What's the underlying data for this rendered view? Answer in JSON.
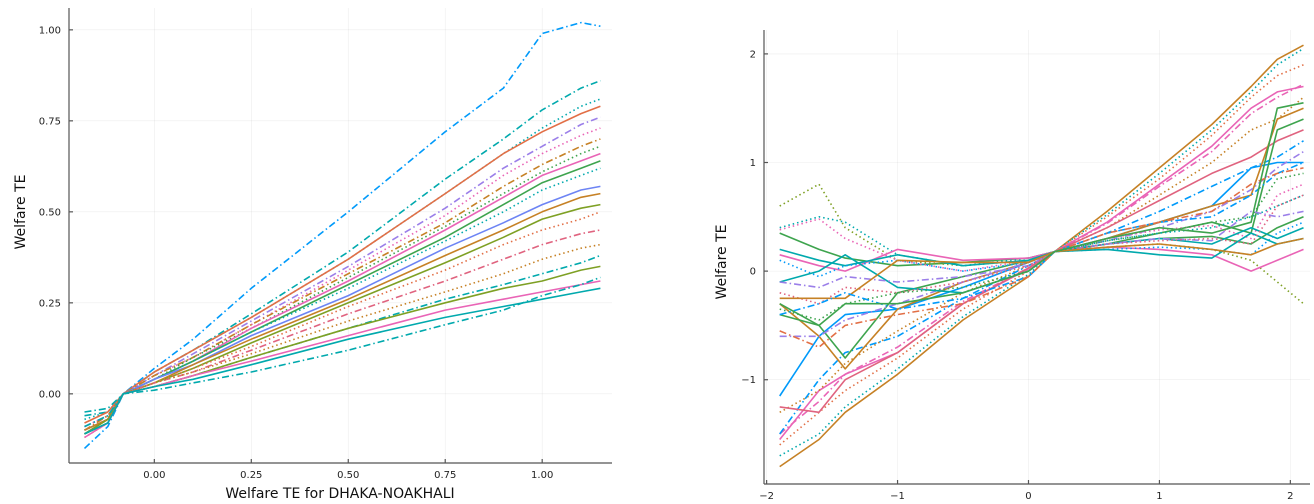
{
  "chart_data": [
    {
      "type": "line",
      "title": "",
      "xlabel": "Welfare TE for DHAKA-NOAKHALI",
      "ylabel": "Welfare TE",
      "xlim": [
        -0.22,
        1.18
      ],
      "ylim": [
        -0.19,
        1.06
      ],
      "xticks": [
        0.0,
        0.25,
        0.5,
        0.75,
        1.0
      ],
      "xtick_labels": [
        "0.00",
        "0.25",
        "0.50",
        "0.75",
        "1.00"
      ],
      "yticks": [
        0.0,
        0.25,
        0.5,
        0.75,
        1.0
      ],
      "ytick_labels": [
        "0.00",
        "0.25",
        "0.50",
        "0.75",
        "1.00"
      ],
      "grid": true,
      "legend": "none",
      "x": [
        -0.18,
        -0.12,
        -0.08,
        0.0,
        0.1,
        0.25,
        0.5,
        0.75,
        0.9,
        1.0,
        1.1,
        1.15
      ],
      "series": [
        {
          "name": "s1",
          "color": "#009AFA",
          "dash": "dashdot",
          "values": [
            -0.15,
            -0.09,
            0.0,
            0.07,
            0.15,
            0.29,
            0.5,
            0.72,
            0.84,
            0.99,
            1.02,
            1.01
          ]
        },
        {
          "name": "s2",
          "color": "#00A9AD",
          "dash": "dashdot",
          "values": [
            -0.06,
            -0.05,
            0.0,
            0.06,
            0.12,
            0.22,
            0.39,
            0.59,
            0.7,
            0.78,
            0.84,
            0.86
          ]
        },
        {
          "name": "s3",
          "color": "#00A9AD",
          "dash": "dot",
          "values": [
            -0.07,
            -0.05,
            0.0,
            0.06,
            0.12,
            0.21,
            0.37,
            0.55,
            0.66,
            0.73,
            0.79,
            0.81
          ]
        },
        {
          "name": "s4",
          "color": "#E26F46",
          "dash": "solid",
          "values": [
            -0.08,
            -0.05,
            0.0,
            0.06,
            0.12,
            0.21,
            0.37,
            0.55,
            0.66,
            0.72,
            0.77,
            0.79
          ]
        },
        {
          "name": "s5",
          "color": "#9B7FE9",
          "dash": "dashdot",
          "values": [
            -0.09,
            -0.06,
            0.0,
            0.05,
            0.11,
            0.2,
            0.35,
            0.51,
            0.62,
            0.68,
            0.74,
            0.76
          ]
        },
        {
          "name": "s6",
          "color": "#E964B6",
          "dash": "dot",
          "values": [
            -0.09,
            -0.06,
            0.0,
            0.05,
            0.1,
            0.19,
            0.34,
            0.49,
            0.6,
            0.66,
            0.71,
            0.73
          ]
        },
        {
          "name": "s7",
          "color": "#C68125",
          "dash": "dashdot",
          "values": [
            -0.1,
            -0.06,
            0.0,
            0.05,
            0.1,
            0.19,
            0.33,
            0.47,
            0.57,
            0.63,
            0.68,
            0.7
          ]
        },
        {
          "name": "s8",
          "color": "#3EA44E",
          "dash": "dot",
          "values": [
            -0.1,
            -0.07,
            0.0,
            0.04,
            0.1,
            0.18,
            0.32,
            0.46,
            0.55,
            0.61,
            0.66,
            0.68
          ]
        },
        {
          "name": "s9",
          "color": "#E964B6",
          "dash": "solid",
          "values": [
            -0.1,
            -0.07,
            0.0,
            0.04,
            0.09,
            0.18,
            0.31,
            0.45,
            0.54,
            0.6,
            0.64,
            0.66
          ]
        },
        {
          "name": "s10",
          "color": "#3EA44E",
          "dash": "solid",
          "values": [
            -0.11,
            -0.07,
            0.0,
            0.04,
            0.09,
            0.17,
            0.3,
            0.43,
            0.52,
            0.58,
            0.62,
            0.64
          ]
        },
        {
          "name": "s11",
          "color": "#00A9AD",
          "dash": "dot",
          "values": [
            -0.11,
            -0.07,
            0.0,
            0.04,
            0.09,
            0.17,
            0.29,
            0.42,
            0.5,
            0.56,
            0.6,
            0.62
          ]
        },
        {
          "name": "s12",
          "color": "#6D84F4",
          "dash": "solid",
          "values": [
            -0.1,
            -0.07,
            0.0,
            0.04,
            0.08,
            0.16,
            0.27,
            0.4,
            0.47,
            0.52,
            0.56,
            0.57
          ]
        },
        {
          "name": "s13",
          "color": "#C68125",
          "dash": "solid",
          "values": [
            -0.1,
            -0.07,
            0.0,
            0.03,
            0.08,
            0.15,
            0.26,
            0.38,
            0.45,
            0.5,
            0.54,
            0.55
          ]
        },
        {
          "name": "s14",
          "color": "#7EA024",
          "dash": "solid",
          "values": [
            -0.11,
            -0.07,
            0.0,
            0.03,
            0.07,
            0.14,
            0.25,
            0.36,
            0.43,
            0.48,
            0.51,
            0.52
          ]
        },
        {
          "name": "s15",
          "color": "#E26F46",
          "dash": "dot",
          "values": [
            -0.12,
            -0.08,
            0.0,
            0.03,
            0.07,
            0.13,
            0.24,
            0.34,
            0.41,
            0.45,
            0.48,
            0.5
          ]
        },
        {
          "name": "s16",
          "color": "#E0637F",
          "dash": "dashdot",
          "values": [
            -0.11,
            -0.08,
            0.0,
            0.03,
            0.06,
            0.12,
            0.22,
            0.31,
            0.37,
            0.41,
            0.44,
            0.45
          ]
        },
        {
          "name": "s17",
          "color": "#C68125",
          "dash": "dot",
          "values": [
            -0.1,
            -0.07,
            0.0,
            0.03,
            0.06,
            0.11,
            0.2,
            0.28,
            0.33,
            0.37,
            0.4,
            0.41
          ]
        },
        {
          "name": "s18",
          "color": "#00A9AD",
          "dash": "dashdot",
          "values": [
            -0.09,
            -0.06,
            0.0,
            0.02,
            0.05,
            0.1,
            0.18,
            0.26,
            0.3,
            0.33,
            0.36,
            0.38
          ]
        },
        {
          "name": "s19",
          "color": "#7EA024",
          "dash": "solid",
          "values": [
            -0.11,
            -0.08,
            0.0,
            0.02,
            0.05,
            0.1,
            0.18,
            0.25,
            0.29,
            0.31,
            0.34,
            0.35
          ]
        },
        {
          "name": "s20",
          "color": "#E964B6",
          "dash": "solid",
          "values": [
            -0.12,
            -0.08,
            0.0,
            0.02,
            0.05,
            0.09,
            0.16,
            0.23,
            0.26,
            0.28,
            0.3,
            0.31
          ]
        },
        {
          "name": "s21",
          "color": "#00A9AD",
          "dash": "solid",
          "values": [
            -0.11,
            -0.08,
            0.0,
            0.02,
            0.04,
            0.08,
            0.15,
            0.21,
            0.24,
            0.26,
            0.28,
            0.29
          ]
        },
        {
          "name": "s22",
          "color": "#00A9AD",
          "dash": "dashdot",
          "values": [
            -0.05,
            -0.04,
            0.0,
            0.01,
            0.03,
            0.06,
            0.12,
            0.19,
            0.23,
            0.27,
            0.3,
            0.32
          ]
        }
      ]
    },
    {
      "type": "line",
      "title": "",
      "xlabel": "",
      "ylabel": "Welfare TE",
      "xlim": [
        -2.02,
        2.15
      ],
      "ylim": [
        -1.96,
        2.22
      ],
      "xticks": [
        -2,
        -1,
        0,
        1,
        2
      ],
      "xtick_labels": [
        "−2",
        "−1",
        "0",
        "1",
        "2"
      ],
      "yticks": [
        -1,
        0,
        1,
        2
      ],
      "ytick_labels": [
        "−1",
        "0",
        "1",
        "2"
      ],
      "grid": true,
      "legend": "none",
      "x": [
        -1.9,
        -1.6,
        -1.4,
        -1.0,
        -0.5,
        0.0,
        0.2,
        0.6,
        1.0,
        1.4,
        1.7,
        1.9,
        2.1
      ],
      "series": [
        {
          "name": "r1",
          "color": "#C68125",
          "dash": "solid",
          "values": [
            -1.8,
            -1.55,
            -1.3,
            -0.95,
            -0.45,
            -0.05,
            0.18,
            0.55,
            0.95,
            1.35,
            1.7,
            1.95,
            2.08
          ]
        },
        {
          "name": "r2",
          "color": "#00A9AD",
          "dash": "dot",
          "values": [
            -1.7,
            -1.5,
            -1.25,
            -0.9,
            -0.42,
            -0.03,
            0.18,
            0.52,
            0.9,
            1.3,
            1.65,
            1.9,
            2.05
          ]
        },
        {
          "name": "r3",
          "color": "#E26F46",
          "dash": "dot",
          "values": [
            -1.6,
            -1.3,
            -1.1,
            -0.8,
            -0.35,
            0.0,
            0.18,
            0.5,
            0.85,
            1.25,
            1.6,
            1.8,
            1.9
          ]
        },
        {
          "name": "r4",
          "color": "#E964B6",
          "dash": "solid",
          "values": [
            -1.55,
            -1.1,
            -0.95,
            -0.75,
            -0.3,
            0.02,
            0.18,
            0.45,
            0.8,
            1.15,
            1.5,
            1.65,
            1.7
          ]
        },
        {
          "name": "r5",
          "color": "#E964B6",
          "dash": "dashdot",
          "values": [
            -1.5,
            -1.2,
            -0.95,
            -0.7,
            -0.28,
            0.03,
            0.18,
            0.44,
            0.78,
            1.1,
            1.45,
            1.6,
            1.72
          ]
        },
        {
          "name": "r6",
          "color": "#C68125",
          "dash": "dot",
          "values": [
            -1.3,
            -1.1,
            -0.85,
            -0.55,
            -0.2,
            0.05,
            0.18,
            0.4,
            0.7,
            1.0,
            1.3,
            1.4,
            1.6
          ]
        },
        {
          "name": "r7",
          "color": "#009AFA",
          "dash": "dashdot",
          "values": [
            -1.5,
            -1.0,
            -0.75,
            -0.6,
            -0.25,
            0.05,
            0.18,
            0.35,
            0.55,
            0.78,
            0.95,
            1.05,
            1.2
          ]
        },
        {
          "name": "r8",
          "color": "#E0637F",
          "dash": "solid",
          "values": [
            -1.25,
            -1.3,
            -1.0,
            -0.75,
            -0.3,
            0.03,
            0.18,
            0.4,
            0.65,
            0.9,
            1.05,
            1.2,
            1.3
          ]
        },
        {
          "name": "r9",
          "color": "#009AFA",
          "dash": "solid",
          "values": [
            -1.15,
            -0.6,
            -0.4,
            -0.35,
            -0.15,
            0.08,
            0.18,
            0.3,
            0.45,
            0.6,
            0.95,
            1.0,
            1.0
          ]
        },
        {
          "name": "r10",
          "color": "#C68125",
          "dash": "solid",
          "values": [
            -0.3,
            -0.6,
            -0.9,
            -0.35,
            -0.1,
            0.08,
            0.18,
            0.3,
            0.45,
            0.6,
            0.7,
            1.4,
            1.5
          ]
        },
        {
          "name": "r11",
          "color": "#3EA44E",
          "dash": "solid",
          "values": [
            -0.4,
            -0.5,
            -0.8,
            -0.2,
            -0.05,
            0.1,
            0.18,
            0.25,
            0.35,
            0.45,
            0.35,
            1.3,
            1.4
          ]
        },
        {
          "name": "r12",
          "color": "#9B7FE9",
          "dash": "dashdot",
          "values": [
            -0.6,
            -0.6,
            -0.45,
            -0.3,
            -0.1,
            0.08,
            0.18,
            0.28,
            0.4,
            0.55,
            0.75,
            0.95,
            1.1
          ]
        },
        {
          "name": "r13",
          "color": "#3EA44E",
          "dash": "solid",
          "values": [
            0.35,
            0.2,
            0.12,
            0.05,
            0.08,
            0.12,
            0.18,
            0.25,
            0.3,
            0.32,
            0.25,
            0.4,
            0.5
          ]
        },
        {
          "name": "r14",
          "color": "#7EA024",
          "dash": "dot",
          "values": [
            0.6,
            0.8,
            0.4,
            0.1,
            0.05,
            0.1,
            0.18,
            0.22,
            0.25,
            0.2,
            0.1,
            -0.1,
            -0.3
          ]
        },
        {
          "name": "r15",
          "color": "#00A9AD",
          "dash": "dot",
          "values": [
            0.4,
            0.5,
            0.45,
            0.15,
            0.05,
            0.12,
            0.18,
            0.28,
            0.35,
            0.4,
            0.5,
            0.6,
            0.7
          ]
        },
        {
          "name": "r16",
          "color": "#E964B6",
          "dash": "dot",
          "values": [
            0.38,
            0.48,
            0.3,
            0.1,
            0.0,
            0.1,
            0.18,
            0.3,
            0.38,
            0.42,
            0.3,
            0.7,
            0.8
          ]
        },
        {
          "name": "r17",
          "color": "#E964B6",
          "dash": "solid",
          "values": [
            0.15,
            0.05,
            0.0,
            0.2,
            0.1,
            0.12,
            0.18,
            0.22,
            0.2,
            0.15,
            0.0,
            0.1,
            0.2
          ]
        },
        {
          "name": "r18",
          "color": "#00A9AD",
          "dash": "solid",
          "values": [
            0.2,
            0.1,
            0.05,
            0.15,
            0.05,
            0.1,
            0.18,
            0.25,
            0.3,
            0.25,
            0.4,
            0.3,
            0.4
          ]
        },
        {
          "name": "r19",
          "color": "#009AFA",
          "dash": "dot",
          "values": [
            0.1,
            -0.05,
            0.05,
            0.1,
            0.0,
            0.08,
            0.18,
            0.2,
            0.22,
            0.2,
            0.15,
            0.35,
            0.45
          ]
        },
        {
          "name": "r20",
          "color": "#00A9AD",
          "dash": "solid",
          "values": [
            -0.1,
            0.0,
            0.15,
            -0.15,
            -0.2,
            0.0,
            0.18,
            0.2,
            0.15,
            0.12,
            0.35,
            0.25,
            0.3
          ]
        },
        {
          "name": "r21",
          "color": "#9B7FE9",
          "dash": "dashdot",
          "values": [
            -0.1,
            -0.15,
            -0.05,
            -0.1,
            -0.05,
            0.05,
            0.18,
            0.25,
            0.3,
            0.28,
            0.55,
            0.5,
            0.55
          ]
        },
        {
          "name": "r22",
          "color": "#E0637F",
          "dash": "dot",
          "values": [
            -0.2,
            -0.3,
            -0.15,
            -0.2,
            -0.1,
            0.05,
            0.18,
            0.25,
            0.28,
            0.3,
            0.25,
            0.6,
            0.7
          ]
        },
        {
          "name": "r23",
          "color": "#C68125",
          "dash": "solid",
          "values": [
            -0.25,
            -0.25,
            -0.25,
            0.1,
            0.08,
            0.08,
            0.18,
            0.22,
            0.25,
            0.2,
            0.15,
            0.25,
            0.3
          ]
        },
        {
          "name": "r24",
          "color": "#3EA44E",
          "dash": "dot",
          "values": [
            -0.35,
            -0.45,
            -0.3,
            -0.2,
            -0.15,
            0.0,
            0.18,
            0.28,
            0.35,
            0.45,
            0.5,
            0.85,
            0.9
          ]
        },
        {
          "name": "r25",
          "color": "#009AFA",
          "dash": "dashdot",
          "values": [
            -0.4,
            -0.3,
            -0.2,
            -0.35,
            -0.25,
            -0.05,
            0.18,
            0.35,
            0.45,
            0.5,
            0.7,
            0.9,
            1.0
          ]
        },
        {
          "name": "r26",
          "color": "#E26F46",
          "dash": "dashdot",
          "values": [
            -0.55,
            -0.7,
            -0.5,
            -0.4,
            -0.3,
            -0.05,
            0.18,
            0.35,
            0.45,
            0.55,
            0.8,
            0.9,
            0.95
          ]
        },
        {
          "name": "r27",
          "color": "#3EA44E",
          "dash": "solid",
          "values": [
            -0.3,
            -0.5,
            -0.3,
            -0.3,
            -0.2,
            0.0,
            0.18,
            0.3,
            0.4,
            0.35,
            0.45,
            1.5,
            1.55
          ]
        }
      ]
    }
  ]
}
